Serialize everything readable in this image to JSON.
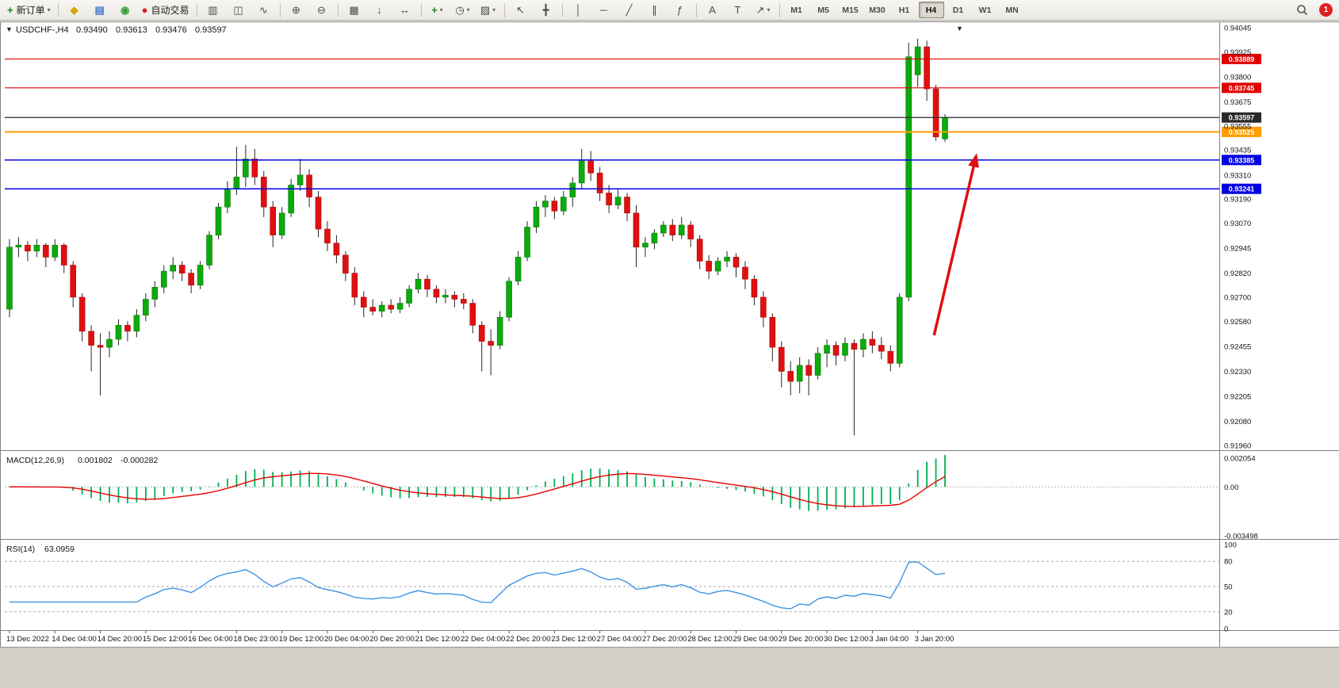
{
  "icons": {
    "caret_down": "▼"
  },
  "toolbar": {
    "items": [
      {
        "name": "new-order-button",
        "glyph": "+",
        "color": "#128812",
        "label": "新订单",
        "dropdown": true
      },
      {
        "sep": true
      },
      {
        "name": "metaeditor-icon",
        "glyph": "◆",
        "color": "#d9a400"
      },
      {
        "name": "market-watch-icon",
        "glyph": "▤",
        "color": "#4a78c8"
      },
      {
        "name": "refresh-icon",
        "glyph": "◉",
        "color": "#3aa03a"
      },
      {
        "name": "autotrading-button",
        "glyph": "●",
        "color": "#d02020",
        "label": "自动交易"
      },
      {
        "sep": true
      },
      {
        "name": "bar-chart-button",
        "glyph": "▥"
      },
      {
        "name": "candlestick-chart-button",
        "glyph": "◫"
      },
      {
        "name": "line-chart-button",
        "glyph": "∿"
      },
      {
        "sep": true
      },
      {
        "name": "zoom-in-button",
        "glyph": "⊕"
      },
      {
        "name": "zoom-out-button",
        "glyph": "⊖"
      },
      {
        "sep": true
      },
      {
        "name": "tile-windows-button",
        "glyph": "▦"
      },
      {
        "name": "auto-scroll-button",
        "glyph": "↓"
      },
      {
        "name": "chart-shift-button",
        "glyph": "↔"
      },
      {
        "sep": true
      },
      {
        "name": "indicators-button",
        "glyph": "+",
        "color": "#128812",
        "dropdown": true
      },
      {
        "name": "periods-button",
        "glyph": "◷",
        "dropdown": true
      },
      {
        "name": "templates-button",
        "glyph": "▨",
        "dropdown": true
      },
      {
        "sep": true
      },
      {
        "name": "cursor-button",
        "glyph": "↖"
      },
      {
        "name": "crosshair-button",
        "glyph": "╋"
      },
      {
        "sep": true
      },
      {
        "name": "vertical-line-button",
        "glyph": "│"
      },
      {
        "name": "horizontal-line-button",
        "glyph": "─"
      },
      {
        "name": "trendline-button",
        "glyph": "╱"
      },
      {
        "name": "channel-button",
        "glyph": "∥"
      },
      {
        "name": "fibonacci-button",
        "glyph": "ƒ"
      },
      {
        "sep": true
      },
      {
        "name": "text-button",
        "glyph": "A"
      },
      {
        "name": "text-label-button",
        "glyph": "T"
      },
      {
        "name": "arrows-button",
        "glyph": "↗",
        "dropdown": true
      },
      {
        "sep": true
      }
    ],
    "timeframes": [
      "M1",
      "M5",
      "M15",
      "M30",
      "H1",
      "H4",
      "D1",
      "W1",
      "MN"
    ],
    "active_timeframe": "H4",
    "badge": "1"
  },
  "chart": {
    "header": {
      "symbol": "USDCHF-,H4",
      "open": "0.93490",
      "high": "0.93613",
      "low": "0.93476",
      "close": "0.93597"
    }
  },
  "macd": {
    "label": "MACD(12,26,9)",
    "value": "0.001802",
    "signal": "-0.000282",
    "axis": [
      "0.002054",
      "0.00",
      "-0.003498"
    ],
    "axis_values": [
      0.002054,
      0,
      -0.003498
    ],
    "params": {
      "fast": 12,
      "slow": 26,
      "signal": 9
    },
    "histogram_color": "#00b050",
    "signal_color": "#e80000"
  },
  "rsi": {
    "label": "RSI(14)",
    "value": "63.0959",
    "period": 14,
    "axis": [
      "100",
      "80",
      "50",
      "20",
      "0"
    ],
    "axis_values": [
      100,
      80,
      50,
      20,
      0
    ],
    "levels": [
      80,
      50,
      20
    ],
    "line_color": "#3d94e6"
  },
  "chart_data": {
    "type": "candlestick",
    "symbol": "USDCHF",
    "period": "H4",
    "title": "USDCHF-,H4 0.93490 0.93613 0.93476 0.93597",
    "y_axis_ticks": [
      "0.94045",
      "0.93925",
      "0.93800",
      "0.93675",
      "0.93555",
      "0.93435",
      "0.93310",
      "0.93190",
      "0.93070",
      "0.92945",
      "0.92820",
      "0.92700",
      "0.92580",
      "0.92455",
      "0.92330",
      "0.92205",
      "0.92080",
      "0.91960"
    ],
    "y_range": [
      0.9196,
      0.94045
    ],
    "x_labels": [
      "13 Dec 2022",
      "14 Dec 04:00",
      "14 Dec 20:00",
      "15 Dec 12:00",
      "16 Dec 04:00",
      "18 Dec 23:00",
      "19 Dec 12:00",
      "20 Dec 04:00",
      "20 Dec 20:00",
      "21 Dec 12:00",
      "22 Dec 04:00",
      "22 Dec 20:00",
      "23 Dec 12:00",
      "27 Dec 04:00",
      "27 Dec 20:00",
      "28 Dec 12:00",
      "29 Dec 04:00",
      "29 Dec 20:00",
      "30 Dec 12:00",
      "3 Jan 04:00",
      "3 Jan 20:00"
    ],
    "x_label_every_n_bars": 5,
    "colors": {
      "up": "#0caa0c",
      "up_border": "#0a7d0a",
      "down": "#e01010",
      "down_border": "#a80c0c",
      "wick": "#262626"
    },
    "ohlc": [
      [
        0.9264,
        0.9299,
        0.926,
        0.9295
      ],
      [
        0.9295,
        0.93,
        0.929,
        0.9296
      ],
      [
        0.9296,
        0.9298,
        0.9288,
        0.9293
      ],
      [
        0.9293,
        0.9299,
        0.929,
        0.9296
      ],
      [
        0.9296,
        0.9297,
        0.9285,
        0.929
      ],
      [
        0.929,
        0.9299,
        0.9288,
        0.9296
      ],
      [
        0.9296,
        0.9297,
        0.9282,
        0.9286
      ],
      [
        0.9286,
        0.9288,
        0.9265,
        0.927
      ],
      [
        0.927,
        0.9272,
        0.9248,
        0.9253
      ],
      [
        0.9253,
        0.9256,
        0.9233,
        0.9246
      ],
      [
        0.9246,
        0.9252,
        0.9221,
        0.9245
      ],
      [
        0.9245,
        0.9253,
        0.924,
        0.9249
      ],
      [
        0.9249,
        0.9259,
        0.9246,
        0.9256
      ],
      [
        0.9256,
        0.9258,
        0.9248,
        0.9253
      ],
      [
        0.9253,
        0.9264,
        0.925,
        0.9261
      ],
      [
        0.9261,
        0.9272,
        0.9258,
        0.9269
      ],
      [
        0.9269,
        0.9278,
        0.9265,
        0.9275
      ],
      [
        0.9275,
        0.9286,
        0.9272,
        0.9283
      ],
      [
        0.9283,
        0.929,
        0.9279,
        0.9286
      ],
      [
        0.9286,
        0.9288,
        0.9278,
        0.9282
      ],
      [
        0.9282,
        0.9284,
        0.9272,
        0.9276
      ],
      [
        0.9276,
        0.9288,
        0.9274,
        0.9286
      ],
      [
        0.9286,
        0.9303,
        0.9284,
        0.9301
      ],
      [
        0.9301,
        0.9317,
        0.9299,
        0.9315
      ],
      [
        0.9315,
        0.9328,
        0.9312,
        0.9324
      ],
      [
        0.9324,
        0.9345,
        0.9321,
        0.933
      ],
      [
        0.933,
        0.9346,
        0.9325,
        0.9339
      ],
      [
        0.9339,
        0.9344,
        0.9326,
        0.933
      ],
      [
        0.933,
        0.9333,
        0.931,
        0.9315
      ],
      [
        0.9315,
        0.9318,
        0.9295,
        0.9301
      ],
      [
        0.9301,
        0.9315,
        0.9299,
        0.9312
      ],
      [
        0.9312,
        0.9329,
        0.931,
        0.9326
      ],
      [
        0.9326,
        0.9339,
        0.9323,
        0.9331
      ],
      [
        0.9331,
        0.9334,
        0.9315,
        0.932
      ],
      [
        0.932,
        0.9323,
        0.93,
        0.9304
      ],
      [
        0.9304,
        0.9308,
        0.9293,
        0.9297
      ],
      [
        0.9297,
        0.9301,
        0.9287,
        0.9291
      ],
      [
        0.9291,
        0.9293,
        0.9278,
        0.9282
      ],
      [
        0.9282,
        0.9285,
        0.9266,
        0.927
      ],
      [
        0.927,
        0.9273,
        0.926,
        0.9265
      ],
      [
        0.9265,
        0.9269,
        0.9261,
        0.9263
      ],
      [
        0.9263,
        0.9268,
        0.926,
        0.9266
      ],
      [
        0.9266,
        0.9269,
        0.9262,
        0.9264
      ],
      [
        0.9264,
        0.927,
        0.9262,
        0.9267
      ],
      [
        0.9267,
        0.9276,
        0.9265,
        0.9274
      ],
      [
        0.9274,
        0.9282,
        0.9272,
        0.9279
      ],
      [
        0.9279,
        0.9281,
        0.927,
        0.9274
      ],
      [
        0.9274,
        0.9276,
        0.9267,
        0.927
      ],
      [
        0.927,
        0.9274,
        0.9267,
        0.9271
      ],
      [
        0.9271,
        0.9273,
        0.9265,
        0.9269
      ],
      [
        0.9269,
        0.9272,
        0.9264,
        0.9267
      ],
      [
        0.9267,
        0.9269,
        0.9252,
        0.9256
      ],
      [
        0.9256,
        0.9258,
        0.9233,
        0.9248
      ],
      [
        0.9248,
        0.9254,
        0.9231,
        0.9246
      ],
      [
        0.9246,
        0.9263,
        0.9244,
        0.926
      ],
      [
        0.926,
        0.928,
        0.9258,
        0.9278
      ],
      [
        0.9278,
        0.9293,
        0.9276,
        0.929
      ],
      [
        0.929,
        0.9308,
        0.9288,
        0.9305
      ],
      [
        0.9305,
        0.9318,
        0.9302,
        0.9315
      ],
      [
        0.9315,
        0.9321,
        0.931,
        0.9318
      ],
      [
        0.9318,
        0.932,
        0.9309,
        0.9313
      ],
      [
        0.9313,
        0.9323,
        0.9311,
        0.932
      ],
      [
        0.932,
        0.933,
        0.9315,
        0.9327
      ],
      [
        0.9327,
        0.9344,
        0.9324,
        0.9338
      ],
      [
        0.9338,
        0.9343,
        0.9328,
        0.9332
      ],
      [
        0.9332,
        0.9335,
        0.9318,
        0.9322
      ],
      [
        0.9322,
        0.9326,
        0.9312,
        0.9316
      ],
      [
        0.9316,
        0.9324,
        0.9314,
        0.932
      ],
      [
        0.932,
        0.9322,
        0.9308,
        0.9312
      ],
      [
        0.9312,
        0.9316,
        0.9285,
        0.9295
      ],
      [
        0.9295,
        0.93,
        0.929,
        0.9297
      ],
      [
        0.9297,
        0.9304,
        0.9294,
        0.9302
      ],
      [
        0.9302,
        0.9308,
        0.93,
        0.9306
      ],
      [
        0.9306,
        0.9309,
        0.9298,
        0.9301
      ],
      [
        0.9301,
        0.931,
        0.9299,
        0.9306
      ],
      [
        0.9306,
        0.9308,
        0.9295,
        0.9299
      ],
      [
        0.9299,
        0.9301,
        0.9284,
        0.9288
      ],
      [
        0.9288,
        0.9291,
        0.9279,
        0.9283
      ],
      [
        0.9283,
        0.929,
        0.9281,
        0.9288
      ],
      [
        0.9288,
        0.9293,
        0.9285,
        0.929
      ],
      [
        0.929,
        0.9292,
        0.928,
        0.9285
      ],
      [
        0.9285,
        0.9288,
        0.9274,
        0.9279
      ],
      [
        0.9279,
        0.9281,
        0.9266,
        0.927
      ],
      [
        0.927,
        0.9273,
        0.9255,
        0.926
      ],
      [
        0.926,
        0.9262,
        0.9238,
        0.9245
      ],
      [
        0.9245,
        0.9248,
        0.9225,
        0.9233
      ],
      [
        0.9233,
        0.9238,
        0.9221,
        0.9228
      ],
      [
        0.9228,
        0.924,
        0.9222,
        0.9236
      ],
      [
        0.9236,
        0.9239,
        0.9221,
        0.9231
      ],
      [
        0.9231,
        0.9245,
        0.9229,
        0.9242
      ],
      [
        0.9242,
        0.9249,
        0.9235,
        0.9246
      ],
      [
        0.9246,
        0.9248,
        0.9236,
        0.9241
      ],
      [
        0.9241,
        0.925,
        0.9238,
        0.9247
      ],
      [
        0.9247,
        0.9249,
        0.9201,
        0.9244
      ],
      [
        0.9244,
        0.9252,
        0.924,
        0.9249
      ],
      [
        0.9249,
        0.9253,
        0.9242,
        0.9246
      ],
      [
        0.9246,
        0.925,
        0.9239,
        0.9243
      ],
      [
        0.9243,
        0.9246,
        0.9233,
        0.9237
      ],
      [
        0.9237,
        0.9272,
        0.9235,
        0.927
      ],
      [
        0.927,
        0.9397,
        0.9268,
        0.939
      ],
      [
        0.9381,
        0.9399,
        0.9375,
        0.9395
      ],
      [
        0.9395,
        0.9398,
        0.9368,
        0.9374
      ],
      [
        0.9374,
        0.9376,
        0.9348,
        0.935
      ],
      [
        0.9349,
        0.93613,
        0.93476,
        0.93597
      ]
    ],
    "overlays": {
      "hlines": [
        {
          "price": 0.93889,
          "tag": "0.93889",
          "color": "#e00000",
          "width": 1.2
        },
        {
          "price": 0.93745,
          "tag": "0.93745",
          "color": "#e00000",
          "width": 1.2
        },
        {
          "price": 0.93597,
          "tag": "0.93597",
          "color": "#2a2a2a",
          "width": 1.2
        },
        {
          "price": 0.93525,
          "tag": "0.93525",
          "color": "#ff9c00",
          "width": 2
        },
        {
          "price": 0.93385,
          "tag": "0.93385",
          "color": "#0000e0",
          "width": 1.5
        },
        {
          "price": 0.93241,
          "tag": "0.93241",
          "color": "#0000e0",
          "width": 1.5
        }
      ],
      "arrow": {
        "x1_bar": 101.8,
        "y1_price": 0.9251,
        "x2_bar": 106.4,
        "y2_price": 0.934,
        "color": "#e01010"
      }
    }
  }
}
